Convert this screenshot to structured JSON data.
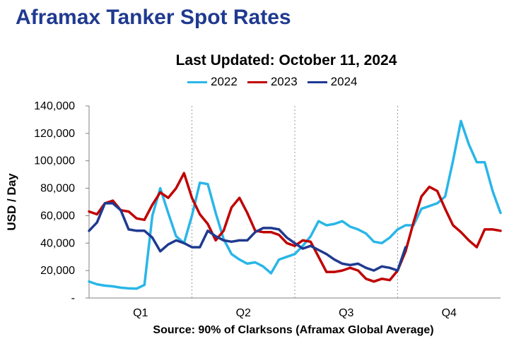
{
  "page": {
    "title": "Aframax Tanker Spot Rates",
    "source": "Source: 90% of Clarksons (Aframax Global Average)"
  },
  "chart_data": {
    "type": "line",
    "title": "Last Updated: October 11, 2024",
    "xlabel": "",
    "ylabel": "USD / Day",
    "ylim": [
      0,
      140000
    ],
    "yticks": [
      {
        "value": 0,
        "label": "-"
      },
      {
        "value": 20000,
        "label": "20,000"
      },
      {
        "value": 40000,
        "label": "40,000"
      },
      {
        "value": 60000,
        "label": "60,000"
      },
      {
        "value": 80000,
        "label": "80,000"
      },
      {
        "value": 100000,
        "label": "100,000"
      },
      {
        "value": 120000,
        "label": "120,000"
      },
      {
        "value": 140000,
        "label": "140,000"
      }
    ],
    "xlim": [
      1,
      53
    ],
    "quarters": [
      "Q1",
      "Q2",
      "Q3",
      "Q4"
    ],
    "grid": "vertical-dotted",
    "legend": "top-center",
    "series": [
      {
        "name": "2022",
        "color": "#29b6e8",
        "x": [
          1,
          2,
          3,
          4,
          5,
          6,
          7,
          8,
          9,
          10,
          11,
          12,
          13,
          14,
          15,
          16,
          17,
          18,
          19,
          20,
          21,
          22,
          23,
          24,
          25,
          26,
          27,
          28,
          29,
          30,
          31,
          32,
          33,
          34,
          35,
          36,
          37,
          38,
          39,
          40,
          41,
          42,
          43,
          44,
          45,
          46,
          47,
          48,
          49,
          50,
          51,
          52,
          53
        ],
        "values": [
          12000,
          10000,
          9000,
          8500,
          7500,
          7000,
          6800,
          9500,
          60000,
          80000,
          62000,
          45000,
          40000,
          60000,
          84000,
          83000,
          62000,
          43000,
          32000,
          28000,
          25000,
          26000,
          23000,
          18000,
          28000,
          30000,
          32000,
          38000,
          45000,
          56000,
          53000,
          54000,
          56000,
          52000,
          50000,
          47000,
          41000,
          40000,
          44000,
          50000,
          53000,
          53000,
          65000,
          67000,
          69000,
          74000,
          100000,
          129000,
          112000,
          99000,
          99000,
          78000,
          62000
        ]
      },
      {
        "name": "2023",
        "color": "#c00000",
        "x": [
          1,
          2,
          3,
          4,
          5,
          6,
          7,
          8,
          9,
          10,
          11,
          12,
          13,
          14,
          15,
          16,
          17,
          18,
          19,
          20,
          21,
          22,
          23,
          24,
          25,
          26,
          27,
          28,
          29,
          30,
          31,
          32,
          33,
          34,
          35,
          36,
          37,
          38,
          39,
          40,
          41,
          42,
          43,
          44,
          45,
          46,
          47,
          48,
          49,
          50,
          51,
          52,
          53
        ],
        "values": [
          63000,
          61000,
          69000,
          71000,
          64000,
          63000,
          58000,
          57000,
          68000,
          77000,
          73000,
          80000,
          91000,
          73000,
          61000,
          54000,
          42000,
          49000,
          66000,
          73000,
          62000,
          49000,
          48000,
          48000,
          46000,
          40000,
          38000,
          42000,
          41000,
          30000,
          19000,
          19000,
          20000,
          22000,
          20000,
          14000,
          12000,
          14000,
          13000,
          20000,
          34000,
          55000,
          74000,
          81000,
          78000,
          65000,
          53000,
          48000,
          42000,
          37000,
          50000,
          50000,
          49000
        ]
      },
      {
        "name": "2024",
        "color": "#1f3a8f",
        "x": [
          1,
          2,
          3,
          4,
          5,
          6,
          7,
          8,
          9,
          10,
          11,
          12,
          13,
          14,
          15,
          16,
          17,
          18,
          19,
          20,
          21,
          22,
          23,
          24,
          25,
          26,
          27,
          28,
          29,
          30,
          31,
          32,
          33,
          34,
          35,
          36,
          37,
          38,
          39,
          40,
          41
        ],
        "values": [
          49000,
          55000,
          69000,
          69000,
          64000,
          50000,
          49000,
          49000,
          44000,
          34000,
          39000,
          42000,
          40000,
          37000,
          37000,
          49000,
          45000,
          42000,
          41000,
          42000,
          42000,
          48000,
          51000,
          51000,
          50000,
          44000,
          40000,
          36000,
          38000,
          35000,
          32000,
          28000,
          25000,
          24000,
          25000,
          22000,
          20000,
          23000,
          22000,
          20000,
          37000
        ]
      }
    ]
  }
}
